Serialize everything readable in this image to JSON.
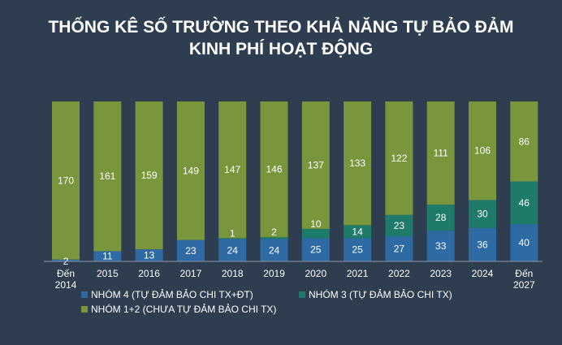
{
  "chart_data": {
    "type": "bar",
    "stacked": true,
    "normalized": true,
    "title_lines": [
      "THỐNG KÊ SỐ TRƯỜNG THEO KHẢ NĂNG TỰ BẢO ĐẢM",
      "KINH PHÍ HOẠT ĐỘNG"
    ],
    "categories": [
      [
        "Đến",
        "2014"
      ],
      [
        "2015"
      ],
      [
        "2016"
      ],
      [
        "2017"
      ],
      [
        "2018"
      ],
      [
        "2019"
      ],
      [
        "2020"
      ],
      [
        "2021"
      ],
      [
        "2022"
      ],
      [
        "2023"
      ],
      [
        "2024"
      ],
      [
        "Đến",
        "2027"
      ]
    ],
    "series": [
      {
        "name": "NHÓM 4 (TỰ ĐẢM BẢO CHI TX+ĐT)",
        "color": "#2e6aa3",
        "values": [
          2,
          11,
          13,
          23,
          24,
          24,
          25,
          25,
          27,
          33,
          36,
          40
        ]
      },
      {
        "name": "NHÓM 3 (TỰ ĐẢM BẢO CHI TX)",
        "color": "#1e7a69",
        "values": [
          0,
          0,
          0,
          0,
          1,
          2,
          10,
          14,
          23,
          28,
          30,
          46
        ]
      },
      {
        "name": "NHÓM 1+2 (CHƯA TỰ ĐẢM BẢO CHI TX)",
        "color": "#79963d",
        "values": [
          170,
          161,
          159,
          149,
          147,
          146,
          137,
          133,
          122,
          111,
          106,
          86
        ]
      }
    ],
    "legend_position": "bottom-left",
    "grid": false
  }
}
